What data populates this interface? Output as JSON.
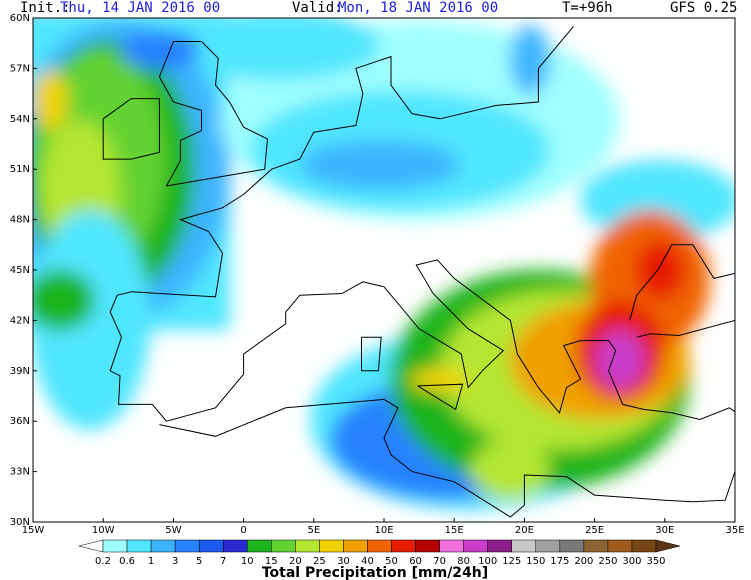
{
  "header": {
    "init_label": "Init.:",
    "init": "Thu, 14 JAN 2016  00",
    "valid_label": "Valid:",
    "valid": "Mon, 18 JAN 2016  00",
    "lead": "T=+96h",
    "model": "GFS 0.25"
  },
  "lat_labels": [
    "60N",
    "57N",
    "54N",
    "51N",
    "48N",
    "45N",
    "42N",
    "39N",
    "36N",
    "33N",
    "30N"
  ],
  "lon_labels": [
    "15W",
    "10W",
    "5W",
    "0",
    "5E",
    "10E",
    "15E",
    "20E",
    "25E",
    "30E",
    "35E"
  ],
  "colorbar": {
    "title": "Total Precipitation [mm/24h]",
    "levels": [
      "0.2",
      "0.6",
      "1",
      "3",
      "5",
      "7",
      "10",
      "15",
      "20",
      "25",
      "30",
      "40",
      "50",
      "60",
      "70",
      "80",
      "100",
      "125",
      "150",
      "175",
      "200",
      "250",
      "300",
      "350"
    ],
    "colors": [
      "#ffffff",
      "#a0ffff",
      "#50e6ff",
      "#3cb4ff",
      "#2882ff",
      "#1e5af0",
      "#2828d2",
      "#1eb41e",
      "#64d232",
      "#b4e632",
      "#f0d200",
      "#f0a000",
      "#f06400",
      "#e61e00",
      "#b40000",
      "#f070dc",
      "#c83cc8",
      "#8c1e8c",
      "#c8c8c8",
      "#a0a0a0",
      "#787878",
      "#8c6432",
      "#a05a1e",
      "#784614",
      "#5a3214"
    ]
  }
}
